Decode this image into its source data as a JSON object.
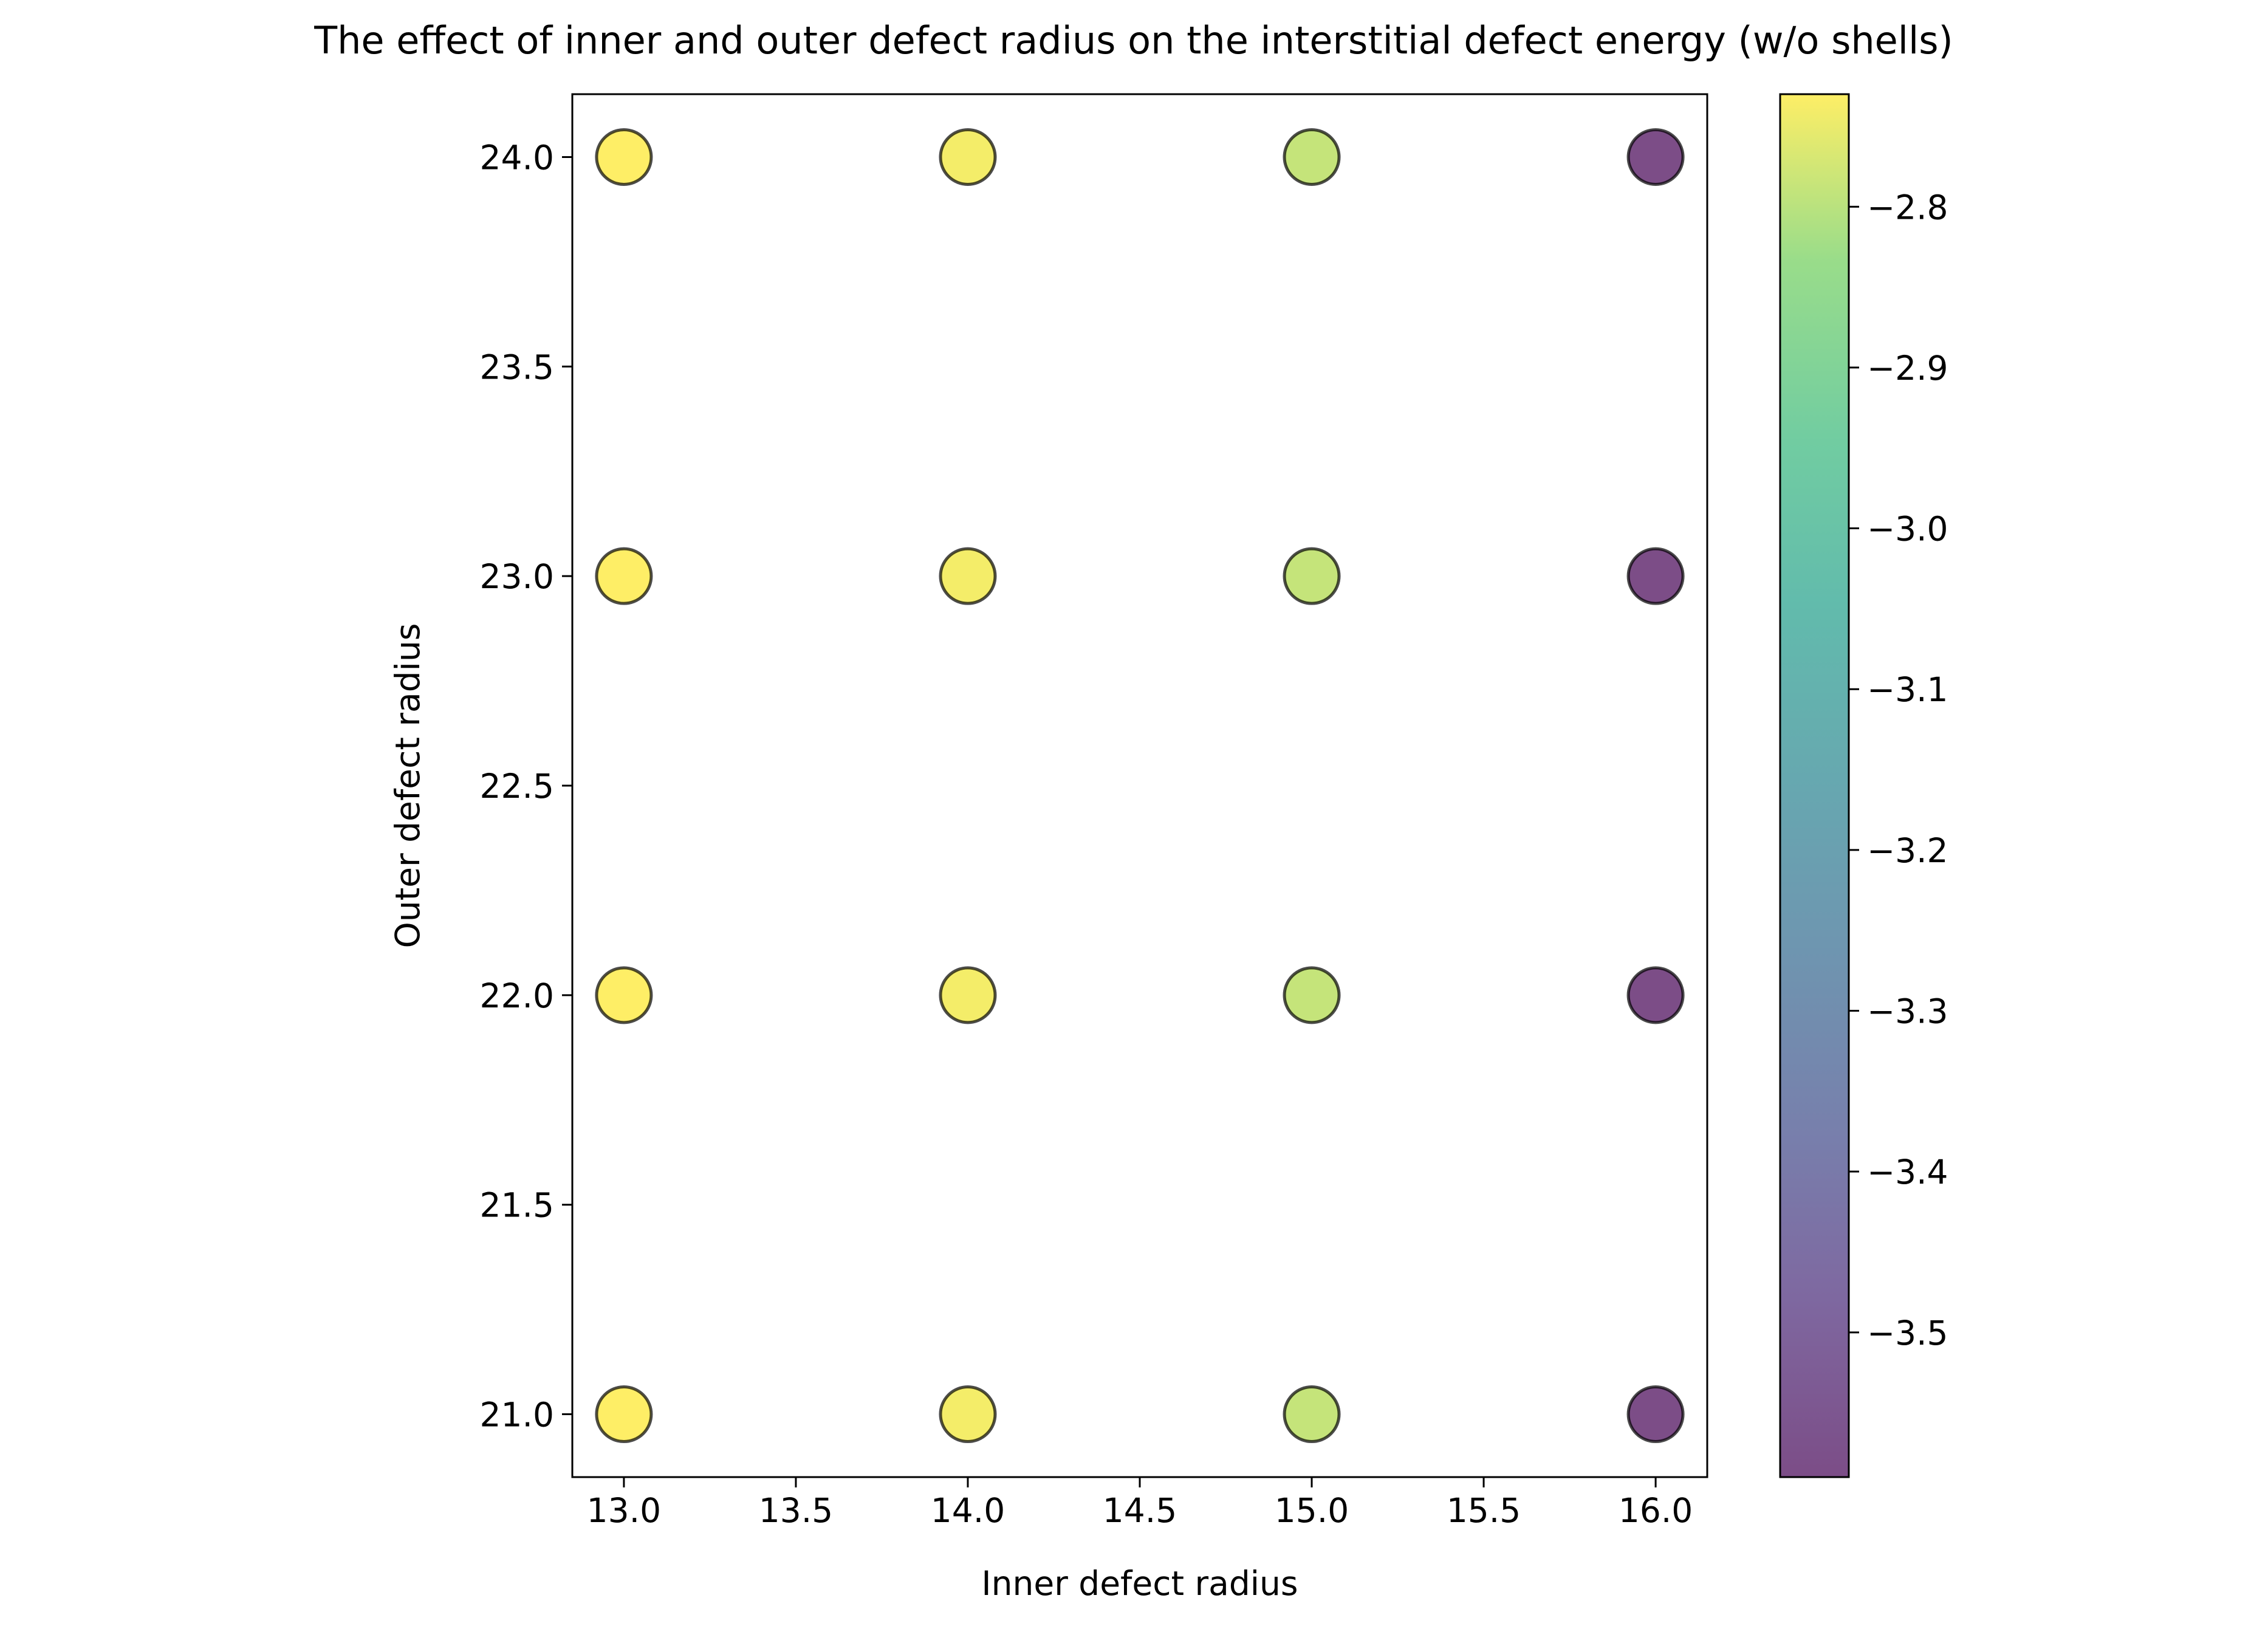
{
  "chart_data": {
    "type": "scatter",
    "title": "The effect of inner and outer defect radius on the interstitial defect energy (w/o shells)",
    "xlabel": "Inner defect radius",
    "ylabel": "Outer defect radius",
    "xlim": [
      12.85,
      16.15
    ],
    "ylim": [
      20.85,
      24.15
    ],
    "xticks": [
      13.0,
      13.5,
      14.0,
      14.5,
      15.0,
      15.5,
      16.0
    ],
    "yticks": [
      21.0,
      21.5,
      22.0,
      22.5,
      23.0,
      23.5,
      24.0
    ],
    "grid": false,
    "colormap": "viridis",
    "marker_alpha": 0.7,
    "colorbar": {
      "vmin": -3.59,
      "vmax": -2.73,
      "ticks": [
        -3.5,
        -3.4,
        -3.3,
        -3.2,
        -3.1,
        -3.0,
        -2.9,
        -2.8
      ]
    },
    "points": [
      {
        "x": 13.0,
        "y": 21.0,
        "c": -2.73
      },
      {
        "x": 13.0,
        "y": 22.0,
        "c": -2.73
      },
      {
        "x": 13.0,
        "y": 23.0,
        "c": -2.73
      },
      {
        "x": 13.0,
        "y": 24.0,
        "c": -2.73
      },
      {
        "x": 14.0,
        "y": 21.0,
        "c": -2.74
      },
      {
        "x": 14.0,
        "y": 22.0,
        "c": -2.74
      },
      {
        "x": 14.0,
        "y": 23.0,
        "c": -2.74
      },
      {
        "x": 14.0,
        "y": 24.0,
        "c": -2.74
      },
      {
        "x": 15.0,
        "y": 21.0,
        "c": -2.79
      },
      {
        "x": 15.0,
        "y": 22.0,
        "c": -2.79
      },
      {
        "x": 15.0,
        "y": 23.0,
        "c": -2.79
      },
      {
        "x": 15.0,
        "y": 24.0,
        "c": -2.79
      },
      {
        "x": 16.0,
        "y": 21.0,
        "c": -3.59
      },
      {
        "x": 16.0,
        "y": 22.0,
        "c": -3.59
      },
      {
        "x": 16.0,
        "y": 23.0,
        "c": -3.59
      },
      {
        "x": 16.0,
        "y": 24.0,
        "c": -3.59
      }
    ]
  }
}
